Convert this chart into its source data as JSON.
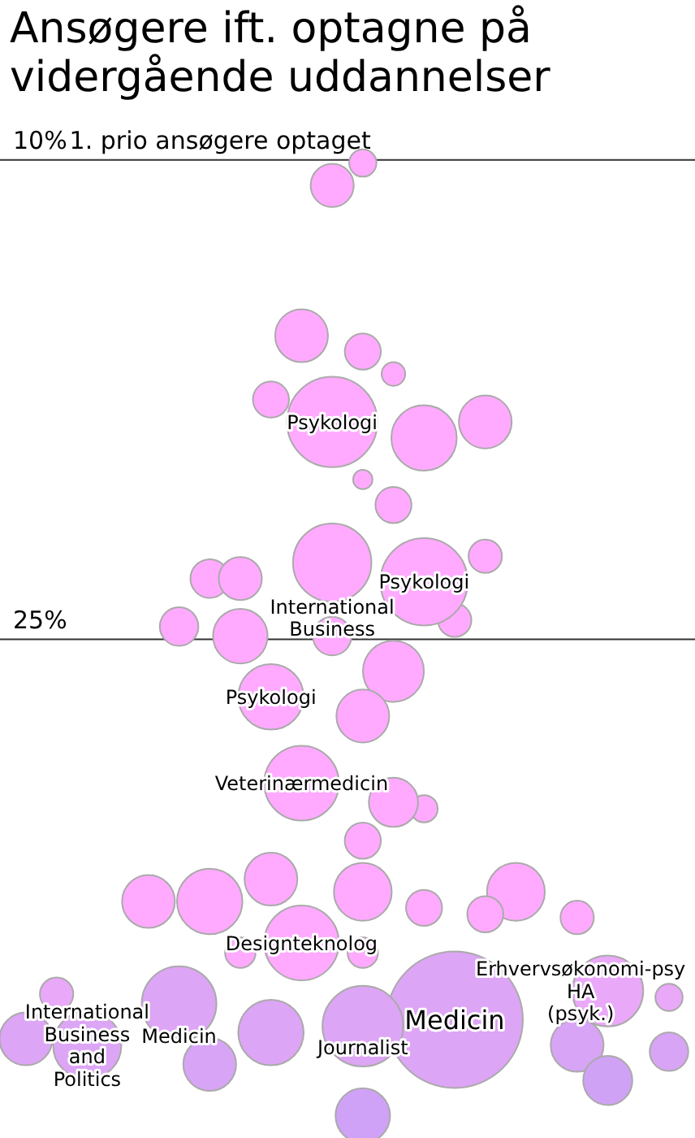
{
  "chart_data": {
    "type": "bubble",
    "title": "Ansøgere ift. optagne på vidergående uddannelser",
    "categories": [
      null,
      null,
      null,
      null,
      null,
      null,
      null,
      null,
      null,
      null,
      null,
      null,
      null,
      null,
      null,
      null,
      null,
      null,
      null,
      null,
      null,
      null
    ],
    "series": [
      {
        "values": [
          37.5,
          36.1,
          37.7,
          null,
          33.2,
          24.6,
          23.1,
          23.1,
          17.5,
          15.5,
          10.8,
          10.1,
          16.7,
          18.7,
          24.4,
          18.2,
          32.9,
          null,
          33.7,
          36.0,
          null,
          36.2
        ],
        "sizes": [
          0.15,
          0.06,
          0.25,
          null,
          0.15,
          0.08,
          0.08,
          0.1,
          0.07,
          0.15,
          0.1,
          0.04,
          0.03,
          0.23,
          0.06,
          0.15,
          0.18,
          null,
          0.06,
          0.27,
          null,
          0.04
        ],
        "colors": [
          "#dda5f5",
          "#eaa8f8",
          "#dda5f5",
          null,
          "#ffaaff",
          "#ffaaff",
          "#ffaaff",
          "#ffaaff",
          "#ffaaff",
          "#ffaaff",
          "#ffaaff",
          "#ffaaff",
          "#ffaaff",
          "#ffaaff",
          "#ffaaff",
          "#ffaaff",
          "#ffaaff",
          null,
          "#ffaaff",
          "#eaa8f8",
          null,
          "#eaa8f8"
        ],
        "value_labels": [
          null,
          null,
          "International Business and Politics",
          null,
          null,
          null,
          null,
          null,
          null,
          null,
          null,
          null,
          null,
          null,
          null,
          null,
          null,
          null,
          null,
          "Erhvervsøkonomi-psy HA (psyk.)",
          null,
          null
        ]
      },
      {
        "values": [
          null,
          null,
          null,
          null,
          null,
          36.4,
          33.2,
          24.9,
          26.8,
          29.5,
          18.2,
          16.0,
          20.8,
          23.2,
          36.9,
          22.4,
          null,
          null,
          37.7,
          38.8,
          null,
          37.9
        ],
        "sizes": [
          null,
          null,
          null,
          null,
          null,
          0.3,
          0.23,
          0.16,
          0.23,
          0.3,
          0.44,
          0.07,
          0.07,
          0.41,
          1,
          0.06,
          null,
          null,
          0.15,
          0.13,
          null,
          0.08
        ],
        "colors": [
          null,
          null,
          null,
          null,
          null,
          "#dda5f5",
          "#ffaaff",
          "#ffaaff",
          "#ffaaff",
          "#ffaaff",
          "#ffaaff",
          "#ffaaff",
          "#ffaaff",
          "#ffaaff",
          "#dda5f5",
          "#ffaaff",
          null,
          null,
          "#d8a4f5",
          "#d0a2f5",
          null,
          "#d8a4f5"
        ],
        "value_labels": [
          null,
          null,
          null,
          null,
          null,
          "Medicin",
          null,
          null,
          "Psykologi",
          "Veterinærmedicin",
          "Psykologi",
          null,
          null,
          "Psykologi",
          "Medicin",
          null,
          null,
          null,
          null,
          null,
          null,
          null
        ]
      },
      {
        "values": [
          null,
          null,
          null,
          null,
          null,
          null,
          38.3,
          34.8,
          32.5,
          34.5,
          22.6,
          20.0,
          26.0,
          30.3,
          null,
          33.6,
          null,
          null,
          null,
          null,
          null,
          null
        ],
        "sizes": [
          null,
          null,
          null,
          null,
          null,
          null,
          0.15,
          0.05,
          0.15,
          0.3,
          0.33,
          0.02,
          0.2,
          0.04,
          null,
          0.07,
          null,
          null,
          null,
          null,
          null,
          null
        ],
        "colors": [
          null,
          null,
          null,
          null,
          null,
          null,
          "#d8a4f5",
          "#ffaaff",
          "#ffaaff",
          "#ffaaff",
          "#ffaaff",
          "#ffaaff",
          "#ffaaff",
          "#ffaaff",
          null,
          "#ffaaff",
          null,
          null,
          null,
          null,
          null,
          null
        ],
        "value_labels": [
          null,
          null,
          null,
          null,
          null,
          null,
          null,
          null,
          null,
          "Designteknolog",
          "International Business",
          null,
          null,
          null,
          null,
          null,
          null,
          null,
          null,
          null,
          null,
          null
        ]
      },
      {
        "values": [
          null,
          null,
          null,
          null,
          null,
          null,
          null,
          null,
          37.3,
          null,
          24.9,
          27.4,
          30.1,
          33.4,
          null,
          null,
          null,
          null,
          null,
          null,
          null,
          null
        ],
        "sizes": [
          null,
          null,
          null,
          null,
          null,
          null,
          null,
          null,
          0.23,
          null,
          0.08,
          0.15,
          0.13,
          0.07,
          null,
          null,
          null,
          null,
          null,
          null,
          null,
          null
        ],
        "colors": [
          null,
          null,
          null,
          null,
          null,
          null,
          null,
          null,
          "#dda5f5",
          null,
          "#ffaaff",
          "#ffaaff",
          "#ffaaff",
          "#ffaaff",
          null,
          null,
          null,
          null,
          null,
          null,
          null,
          null
        ]
      },
      {
        "values": [
          null,
          null,
          null,
          null,
          null,
          null,
          null,
          null,
          null,
          null,
          null,
          31.3,
          null,
          null,
          null,
          null,
          null,
          null,
          null,
          null,
          null,
          null
        ],
        "sizes": [
          null,
          null,
          null,
          null,
          null,
          null,
          null,
          null,
          null,
          null,
          null,
          0.07,
          null,
          null,
          null,
          null,
          null,
          null,
          null,
          null,
          null,
          null
        ],
        "colors": [
          null,
          null,
          null,
          null,
          null,
          null,
          null,
          null,
          null,
          null,
          null,
          "#ffaaff",
          null,
          null,
          null,
          null,
          null,
          null,
          null,
          null,
          null,
          null
        ]
      },
      {
        "values": [
          null,
          null,
          null,
          null,
          null,
          null,
          null,
          null,
          null,
          null,
          null,
          32.9,
          null,
          null,
          null,
          null,
          null,
          null,
          null,
          null,
          null,
          null
        ],
        "sizes": [
          null,
          null,
          null,
          null,
          null,
          null,
          null,
          null,
          null,
          null,
          null,
          0.18,
          null,
          null,
          null,
          null,
          null,
          null,
          null,
          null,
          null,
          null
        ],
        "colors": [
          null,
          null,
          null,
          null,
          null,
          null,
          null,
          null,
          null,
          null,
          null,
          "#ffaaff",
          null,
          null,
          null,
          null,
          null,
          null,
          null,
          null,
          null,
          null
        ]
      },
      {
        "values": [
          null,
          null,
          null,
          null,
          null,
          null,
          null,
          null,
          null,
          null,
          null,
          34.8,
          null,
          null,
          null,
          null,
          null,
          null,
          null,
          null,
          null,
          null
        ],
        "sizes": [
          null,
          null,
          null,
          null,
          null,
          null,
          null,
          null,
          null,
          null,
          null,
          0.05,
          null,
          null,
          null,
          null,
          null,
          null,
          null,
          null,
          null,
          null
        ],
        "colors": [
          null,
          null,
          null,
          null,
          null,
          null,
          null,
          null,
          null,
          null,
          null,
          "#ffaaff",
          null,
          null,
          null,
          null,
          null,
          null,
          null,
          null,
          null,
          null
        ]
      },
      {
        "values": [
          null,
          null,
          null,
          null,
          null,
          null,
          null,
          null,
          null,
          null,
          null,
          37.1,
          null,
          null,
          null,
          null,
          null,
          null,
          null,
          null,
          null,
          null
        ],
        "sizes": [
          null,
          null,
          null,
          null,
          null,
          null,
          null,
          null,
          null,
          null,
          null,
          0.35,
          null,
          null,
          null,
          null,
          null,
          null,
          null,
          null,
          null,
          null
        ],
        "colors": [
          null,
          null,
          null,
          null,
          null,
          null,
          null,
          null,
          null,
          null,
          null,
          "#dda5f5",
          null,
          null,
          null,
          null,
          null,
          null,
          null,
          null,
          null,
          null
        ],
        "value_labels": [
          null,
          null,
          null,
          null,
          null,
          null,
          null,
          null,
          null,
          null,
          null,
          "Journalist",
          null,
          null,
          null,
          null,
          null,
          null,
          null,
          null,
          null,
          null
        ]
      },
      {
        "values": [
          null,
          null,
          null,
          null,
          null,
          null,
          null,
          null,
          null,
          null,
          null,
          39.9,
          null,
          null,
          null,
          null,
          null,
          null,
          null,
          null,
          null,
          null
        ],
        "sizes": [
          null,
          null,
          null,
          null,
          null,
          null,
          null,
          null,
          null,
          null,
          null,
          0.16,
          null,
          null,
          null,
          null,
          null,
          null,
          null,
          null,
          null,
          null
        ],
        "colors": [
          null,
          null,
          null,
          null,
          null,
          null,
          null,
          null,
          null,
          null,
          null,
          "#cfa2f7",
          null,
          null,
          null,
          null,
          null,
          null,
          null,
          null,
          null,
          null
        ]
      }
    ],
    "ylim": [
      40.6,
      5.0
    ],
    "yticks": [
      {
        "value": 10,
        "label": "10%"
      },
      {
        "value": 25,
        "label": "25%"
      }
    ],
    "ylabel": "1. prio ansøgere optaget",
    "grid": "y",
    "tick_labels": "y"
  }
}
